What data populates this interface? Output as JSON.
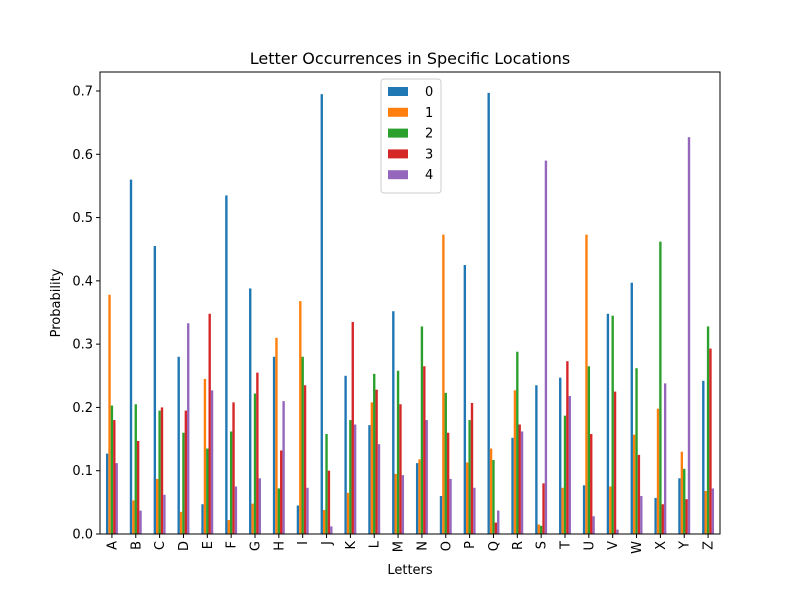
{
  "chart_data": {
    "type": "bar",
    "title": "Letter Occurrences in Specific Locations",
    "xlabel": "Letters",
    "ylabel": "Probability",
    "ylim": [
      0,
      0.73
    ],
    "yticks": [
      0.0,
      0.1,
      0.2,
      0.3,
      0.4,
      0.5,
      0.6,
      0.7
    ],
    "ytick_labels": [
      "0.0",
      "0.1",
      "0.2",
      "0.3",
      "0.4",
      "0.5",
      "0.6",
      "0.7"
    ],
    "grid": false,
    "legend_position": "top-center",
    "categories": [
      "A",
      "B",
      "C",
      "D",
      "E",
      "F",
      "G",
      "H",
      "I",
      "J",
      "K",
      "L",
      "M",
      "N",
      "O",
      "P",
      "Q",
      "R",
      "S",
      "T",
      "U",
      "V",
      "W",
      "X",
      "Y",
      "Z"
    ],
    "series": [
      {
        "name": "0",
        "color": "#1f77b4",
        "values": [
          0.127,
          0.56,
          0.455,
          0.28,
          0.047,
          0.535,
          0.388,
          0.28,
          0.045,
          0.695,
          0.25,
          0.172,
          0.352,
          0.112,
          0.06,
          0.425,
          0.697,
          0.152,
          0.235,
          0.247,
          0.077,
          0.348,
          0.397,
          0.057,
          0.088,
          0.242
        ]
      },
      {
        "name": "1",
        "color": "#ff7f0e",
        "values": [
          0.378,
          0.053,
          0.087,
          0.035,
          0.245,
          0.022,
          0.048,
          0.31,
          0.368,
          0.038,
          0.065,
          0.208,
          0.095,
          0.118,
          0.473,
          0.113,
          0.135,
          0.227,
          0.015,
          0.073,
          0.473,
          0.075,
          0.157,
          0.198,
          0.13,
          0.068
        ]
      },
      {
        "name": "2",
        "color": "#2ca02c",
        "values": [
          0.203,
          0.205,
          0.195,
          0.16,
          0.135,
          0.162,
          0.222,
          0.072,
          0.28,
          0.158,
          0.18,
          0.253,
          0.258,
          0.328,
          0.223,
          0.18,
          0.117,
          0.288,
          0.013,
          0.187,
          0.265,
          0.345,
          0.262,
          0.462,
          0.103,
          0.328
        ]
      },
      {
        "name": "3",
        "color": "#d62728",
        "values": [
          0.18,
          0.147,
          0.2,
          0.195,
          0.348,
          0.208,
          0.255,
          0.132,
          0.235,
          0.1,
          0.335,
          0.228,
          0.205,
          0.265,
          0.16,
          0.207,
          0.018,
          0.173,
          0.08,
          0.273,
          0.158,
          0.225,
          0.125,
          0.047,
          0.055,
          0.293
        ]
      },
      {
        "name": "4",
        "color": "#9467bd",
        "values": [
          0.112,
          0.037,
          0.062,
          0.333,
          0.227,
          0.075,
          0.088,
          0.21,
          0.073,
          0.012,
          0.173,
          0.142,
          0.093,
          0.18,
          0.087,
          0.073,
          0.037,
          0.162,
          0.59,
          0.218,
          0.028,
          0.007,
          0.06,
          0.238,
          0.627,
          0.072
        ]
      }
    ]
  }
}
